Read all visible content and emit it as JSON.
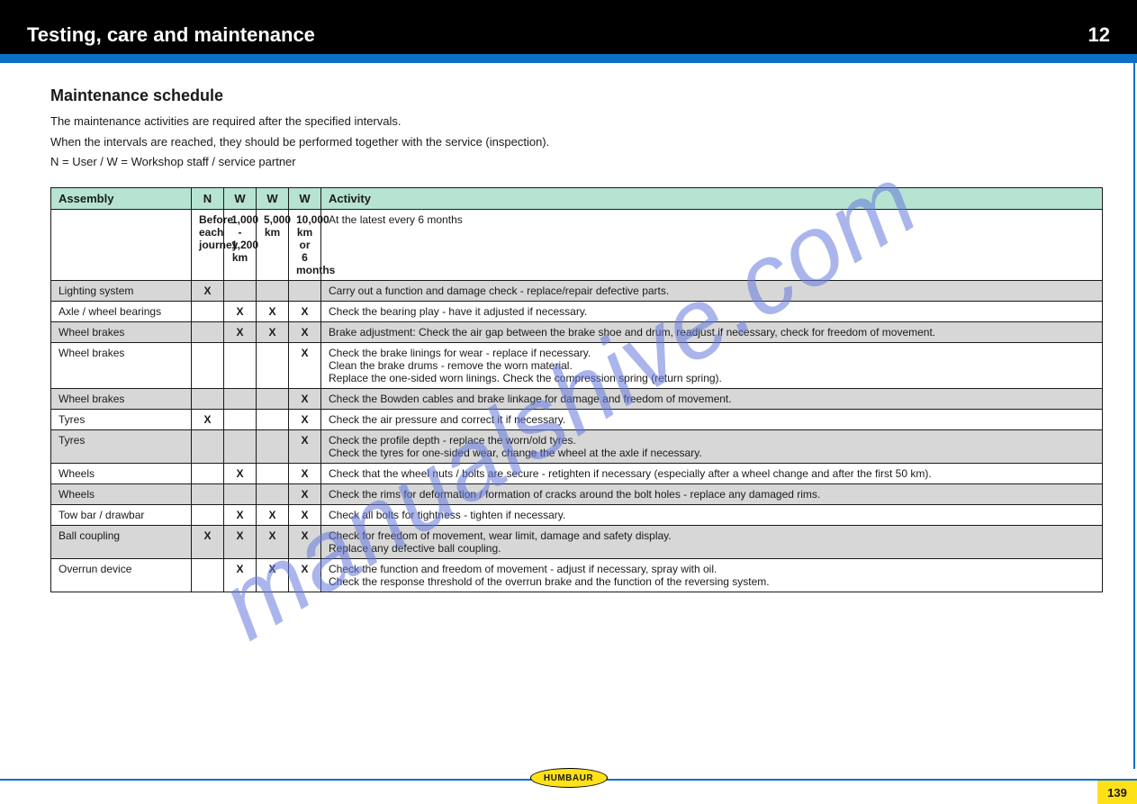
{
  "header": {
    "doc_title": "Testing, care and maintenance",
    "section_number": "12"
  },
  "heading": "Maintenance schedule",
  "intro_lines": [
    "The maintenance activities are required after the specified intervals.",
    "When the intervals are reached, they should be performed together with the service (inspection).",
    "N = User / W = Workshop staff / service partner"
  ],
  "table": {
    "headers": {
      "assembly": "Assembly",
      "i1": "N",
      "i2": "W",
      "i3": "W",
      "i4": "W",
      "activity": "Activity"
    },
    "col_note": " ",
    "rows": [
      {
        "shade": false,
        "assembly": "",
        "i1": "Before each\njourney",
        "i2": "1,000 -\n1,200 km",
        "i3": "5,000 km",
        "i4": "10,000 km\nor 6 months",
        "activity": "At the latest every 6 months"
      },
      {
        "shade": true,
        "assembly": "Lighting system",
        "i1": "X",
        "i2": "",
        "i3": "",
        "i4": "",
        "activity": "Carry out a function and damage check - replace/repair defective parts."
      },
      {
        "shade": false,
        "assembly": "Axle / wheel bearings",
        "i1": "",
        "i2": "X",
        "i3": "X",
        "i4": "X",
        "activity": "Check the bearing play - have it adjusted if necessary."
      },
      {
        "shade": true,
        "assembly": "Wheel brakes",
        "i1": "",
        "i2": "X",
        "i3": "X",
        "i4": "X",
        "activity": "Brake adjustment: Check the air gap between the brake shoe and drum, readjust if necessary, check for freedom of movement."
      },
      {
        "shade": false,
        "assembly": "Wheel brakes",
        "i1": "",
        "i2": "",
        "i3": "",
        "i4": "X",
        "activity": "Check the brake linings for wear - replace if necessary.\nClean the brake drums - remove the worn material.\nReplace the one-sided worn linings. Check the compression spring (return spring)."
      },
      {
        "shade": true,
        "assembly": "Wheel brakes",
        "i1": "",
        "i2": "",
        "i3": "",
        "i4": "X",
        "activity": "Check the Bowden cables and brake linkage for damage and freedom of movement."
      },
      {
        "shade": false,
        "assembly": "Tyres",
        "i1": "X",
        "i2": "",
        "i3": "",
        "i4": "X",
        "activity": "Check the air pressure and correct it if necessary."
      },
      {
        "shade": true,
        "assembly": "Tyres",
        "i1": "",
        "i2": "",
        "i3": "",
        "i4": "X",
        "activity": "Check the profile depth - replace the worn/old tyres.\nCheck the tyres for one-sided wear, change the wheel at the axle if necessary."
      },
      {
        "shade": false,
        "assembly": "Wheels",
        "i1": "",
        "i2": "X",
        "i3": "",
        "i4": "X",
        "activity": "Check that the wheel nuts / bolts are secure - retighten if necessary (especially after a wheel change and after the first 50 km)."
      },
      {
        "shade": true,
        "assembly": "Wheels",
        "i1": "",
        "i2": "",
        "i3": "",
        "i4": "X",
        "activity": "Check the rims for deformation / formation of cracks around the bolt holes - replace any damaged rims."
      },
      {
        "shade": false,
        "assembly": "Tow bar / drawbar",
        "i1": "",
        "i2": "X",
        "i3": "X",
        "i4": "X",
        "activity": "Check all bolts for tightness - tighten if necessary."
      },
      {
        "shade": true,
        "assembly": "Ball coupling",
        "i1": "X",
        "i2": "X",
        "i3": "X",
        "i4": "X",
        "activity": "Check for freedom of movement, wear limit, damage and safety display.\nReplace any defective ball coupling."
      },
      {
        "shade": false,
        "assembly": "Overrun device",
        "i1": "",
        "i2": "X",
        "i3": "X",
        "i4": "X",
        "activity": "Check the function and freedom of movement - adjust if necessary, spray with oil.\nCheck the response threshold of the overrun brake and the function of the reversing system."
      }
    ]
  },
  "footer": {
    "brand": "HUMBAUR",
    "page_number": "139"
  },
  "colors": {
    "blue": "#0b6ec7",
    "header_bg": "#b7e3d2",
    "shade_bg": "#d7d7d7",
    "yellow": "#ffe118"
  },
  "watermark": "manualshive.com"
}
